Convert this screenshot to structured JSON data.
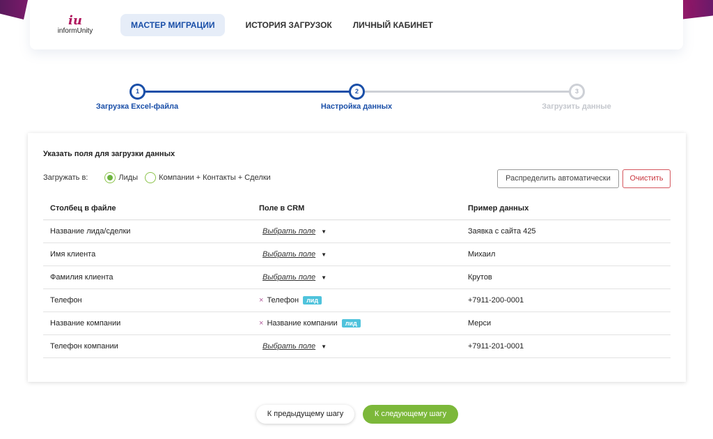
{
  "colors": {
    "accent": "#1a4fa8",
    "brand": "#b0185e",
    "success": "#7cb83a",
    "badge": "#4fc3dc",
    "danger": "#c9363e"
  },
  "logo": {
    "mark": "iu",
    "text": "informUnity"
  },
  "nav": [
    {
      "label": "МАСТЕР МИГРАЦИИ",
      "active": true
    },
    {
      "label": "ИСТОРИЯ ЗАГРУЗОК"
    },
    {
      "label": "ЛИЧНЫЙ КАБИНЕТ"
    }
  ],
  "steps": [
    {
      "num": "1",
      "label": "Загрузка Excel-файла",
      "state": "done"
    },
    {
      "num": "2",
      "label": "Настройка данных",
      "state": "active"
    },
    {
      "num": "3",
      "label": "Загрузить данные",
      "state": "pending"
    }
  ],
  "card": {
    "title": "Указать поля для загрузки данных",
    "load_label": "Загружать в:",
    "options": [
      {
        "label": "Лиды",
        "selected": true
      },
      {
        "label": "Компании + Контакты + Сделки",
        "selected": false
      }
    ],
    "auto_button": "Распределить автоматически",
    "clear_button": "Очистить"
  },
  "table": {
    "headers": [
      "Столбец в файле",
      "Поле в CRM",
      "Пример данных"
    ],
    "rows": [
      {
        "column": "Название лида/сделки",
        "field": "Выбрать поле",
        "example": "Заявка с сайта 425"
      },
      {
        "column": "Имя клиента",
        "field": "Выбрать поле",
        "example": "Михаил"
      },
      {
        "column": "Фамилия клиента",
        "field": "Выбрать поле",
        "example": "Крутов"
      },
      {
        "column": "Телефон",
        "remove": "×",
        "mapped": "Телефон",
        "badge": "лид",
        "example": "+7911-200-0001"
      },
      {
        "column": "Название компании",
        "remove": "×",
        "mapped": "Название компании",
        "badge": "лид",
        "example": "Мерси"
      },
      {
        "column": "Телефон компании",
        "field": "Выбрать поле",
        "example": "+7911-201-0001"
      }
    ]
  },
  "footer": {
    "prev": "К предыдущему шагу",
    "next": "К следующему шагу"
  }
}
